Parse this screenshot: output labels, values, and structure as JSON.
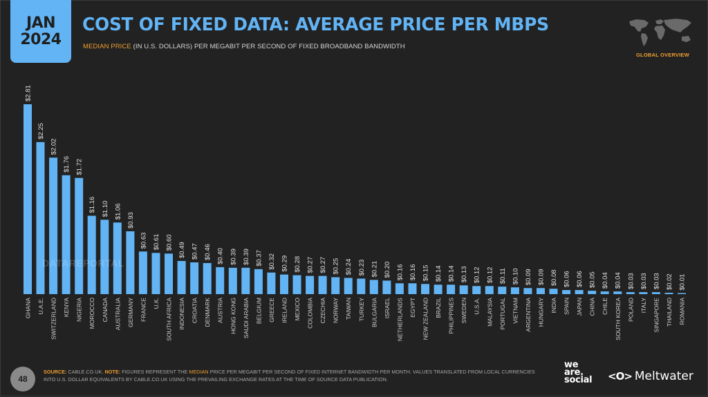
{
  "header": {
    "date_month": "JAN",
    "date_year": "2024",
    "title": "COST OF FIXED DATA: AVERAGE PRICE PER MBPS",
    "subtitle_accent": "MEDIAN PRICE",
    "subtitle_rest": " (IN U.S. DOLLARS) PER MEGABIT PER SECOND OF FIXED BROADBAND BANDWIDTH",
    "region_label": "GLOBAL OVERVIEW"
  },
  "watermark": "DATAREPORTAL",
  "footer": {
    "page_number": "48",
    "source_label": "SOURCE:",
    "source_text": " CABLE.CO.UK. ",
    "note_label": "NOTE:",
    "note_text_1": " FIGURES REPRESENT THE ",
    "note_accent": "MEDIAN",
    "note_text_2": " PRICE PER MEGABIT PER SECOND OF FIXED INTERNET BANDWIDTH PER MONTH. VALUES TRANSLATED FROM LOCAL CURRENCIES INTO U.S. DOLLAR EQUIVALENTS BY CABLE.CO.UK USING THE PREVAILING EXCHANGE RATES AT THE TIME OF SOURCE DATA PUBLICATION.",
    "logo_we_are_social": [
      "we",
      "are.",
      "social"
    ],
    "logo_meltwater_mark": "<O>",
    "logo_meltwater": "Meltwater"
  },
  "colors": {
    "bar": "#62b4f5",
    "accent": "#f0a030",
    "background": "#222222",
    "label": "#e0e0e0"
  },
  "chart_data": {
    "type": "bar",
    "title": "COST OF FIXED DATA: AVERAGE PRICE PER MBPS",
    "subtitle": "MEDIAN PRICE (IN U.S. DOLLARS) PER MEGABIT PER SECOND OF FIXED BROADBAND BANDWIDTH",
    "xlabel": "",
    "ylabel": "",
    "value_prefix": "$",
    "ylim": [
      0,
      2.81
    ],
    "grid": false,
    "legend": "none",
    "categories": [
      "GHANA",
      "U.A.E.",
      "SWITZERLAND",
      "KENYA",
      "NIGERIA",
      "MOROCCO",
      "CANADA",
      "AUSTRALIA",
      "GERMANY",
      "FRANCE",
      "U.K.",
      "SOUTH AFRICA",
      "INDONESIA",
      "CROATIA",
      "DENMARK",
      "AUSTRIA",
      "HONG KONG",
      "SAUDI ARABIA",
      "BELGIUM",
      "GREECE",
      "IRELAND",
      "MEXICO",
      "COLOMBIA",
      "CZECHIA",
      "NORWAY",
      "TAIWAN",
      "TURKEY",
      "BULGARIA",
      "ISRAEL",
      "NETHERLANDS",
      "EGYPT",
      "NEW ZEALAND",
      "BRAZIL",
      "PHILIPPINES",
      "SWEDEN",
      "U.S.A.",
      "MALAYSIA",
      "PORTUGAL",
      "VIETNAM",
      "ARGENTINA",
      "HUNGARY",
      "INDIA",
      "SPAIN",
      "JAPAN",
      "CHINA",
      "CHILE",
      "SOUTH KOREA",
      "POLAND",
      "ITALY",
      "SINGAPORE",
      "THAILAND",
      "ROMANIA"
    ],
    "values": [
      2.81,
      2.25,
      2.02,
      1.76,
      1.72,
      1.16,
      1.1,
      1.06,
      0.93,
      0.63,
      0.61,
      0.6,
      0.49,
      0.47,
      0.46,
      0.4,
      0.39,
      0.39,
      0.37,
      0.32,
      0.29,
      0.28,
      0.27,
      0.27,
      0.25,
      0.24,
      0.23,
      0.21,
      0.2,
      0.16,
      0.16,
      0.15,
      0.14,
      0.14,
      0.13,
      0.12,
      0.12,
      0.11,
      0.1,
      0.09,
      0.09,
      0.08,
      0.06,
      0.06,
      0.05,
      0.04,
      0.04,
      0.03,
      0.03,
      0.03,
      0.02,
      0.01
    ]
  }
}
